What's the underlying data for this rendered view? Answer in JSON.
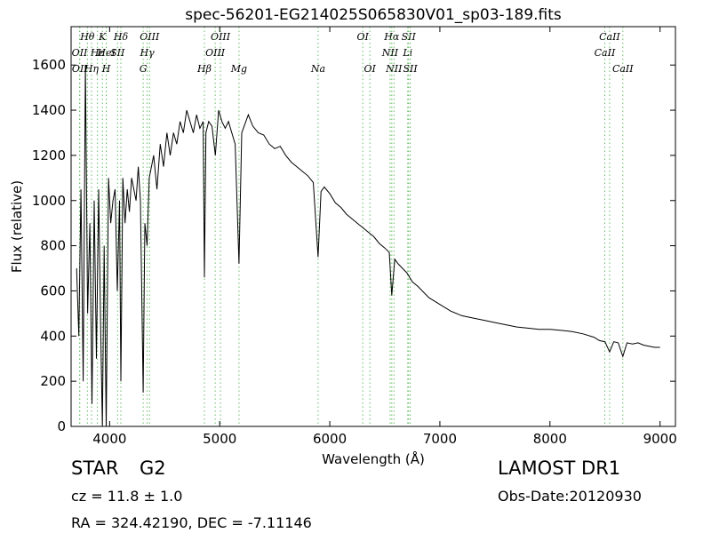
{
  "chart_data": {
    "type": "line",
    "title": "spec-56201-EG214025S065830V01_sp03-189.fits",
    "x_label": "Wavelength (Å)",
    "y_label": "Flux (relative)",
    "xlim": [
      3650,
      9140
    ],
    "ylim": [
      0,
      1770
    ],
    "xticks": [
      4000,
      5000,
      6000,
      7000,
      8000,
      9000
    ],
    "yticks": [
      0,
      200,
      400,
      600,
      800,
      1000,
      1200,
      1400,
      1600
    ],
    "color": "#000000",
    "line_color": "#66bb66",
    "x": [
      3700,
      3720,
      3740,
      3760,
      3780,
      3800,
      3820,
      3840,
      3860,
      3880,
      3900,
      3920,
      3934,
      3950,
      3969,
      3990,
      4010,
      4030,
      4050,
      4070,
      4090,
      4102,
      4120,
      4140,
      4160,
      4180,
      4200,
      4220,
      4240,
      4260,
      4280,
      4305,
      4320,
      4340,
      4360,
      4380,
      4400,
      4430,
      4460,
      4490,
      4520,
      4550,
      4580,
      4610,
      4640,
      4670,
      4700,
      4730,
      4760,
      4790,
      4820,
      4850,
      4861,
      4875,
      4900,
      4930,
      4960,
      4990,
      5020,
      5050,
      5080,
      5110,
      5140,
      5175,
      5200,
      5230,
      5260,
      5300,
      5350,
      5400,
      5450,
      5500,
      5550,
      5600,
      5650,
      5700,
      5750,
      5800,
      5850,
      5894,
      5920,
      5950,
      6000,
      6050,
      6100,
      6150,
      6200,
      6250,
      6300,
      6350,
      6400,
      6450,
      6500,
      6540,
      6563,
      6590,
      6620,
      6660,
      6700,
      6750,
      6800,
      6900,
      7000,
      7100,
      7200,
      7300,
      7400,
      7500,
      7600,
      7700,
      7800,
      7900,
      8000,
      8100,
      8200,
      8300,
      8400,
      8450,
      8500,
      8542,
      8580,
      8620,
      8662,
      8700,
      8750,
      8800,
      8850,
      8900,
      8950,
      9000
    ],
    "values": [
      700,
      400,
      1050,
      200,
      1600,
      500,
      900,
      100,
      1000,
      300,
      1050,
      400,
      0,
      800,
      0,
      1100,
      900,
      1000,
      1050,
      600,
      1000,
      200,
      1100,
      900,
      1050,
      950,
      1100,
      1050,
      1000,
      1150,
      1000,
      150,
      900,
      800,
      1100,
      1150,
      1200,
      1050,
      1250,
      1150,
      1300,
      1200,
      1300,
      1250,
      1350,
      1300,
      1400,
      1350,
      1300,
      1380,
      1320,
      1350,
      660,
      1300,
      1350,
      1330,
      1200,
      1400,
      1350,
      1320,
      1350,
      1300,
      1250,
      720,
      1300,
      1340,
      1380,
      1330,
      1300,
      1290,
      1250,
      1230,
      1240,
      1200,
      1170,
      1150,
      1130,
      1110,
      1080,
      750,
      1040,
      1060,
      1030,
      990,
      970,
      940,
      920,
      900,
      880,
      860,
      840,
      810,
      790,
      770,
      580,
      740,
      720,
      700,
      680,
      640,
      620,
      570,
      540,
      510,
      490,
      480,
      470,
      460,
      450,
      440,
      435,
      430,
      430,
      425,
      420,
      410,
      395,
      380,
      375,
      330,
      375,
      370,
      310,
      370,
      365,
      370,
      360,
      355,
      350,
      350
    ],
    "lines": [
      {
        "x": 3798,
        "label": "Hθ"
      },
      {
        "x": 3934,
        "label": "K"
      },
      {
        "x": 4102,
        "label": "Hδ"
      },
      {
        "x": 4363,
        "label": "OIII"
      },
      {
        "x": 5007,
        "label": "OIII"
      },
      {
        "x": 6300,
        "label": "OI"
      },
      {
        "x": 6563,
        "label": "Hα"
      },
      {
        "x": 6716,
        "label": "SII"
      },
      {
        "x": 8542,
        "label": "CaII"
      },
      {
        "x": 3727,
        "label": "OII"
      },
      {
        "x": 3889,
        "label": "Hε"
      },
      {
        "x": 3970,
        "label": "HeI"
      },
      {
        "x": 4072,
        "label": "SII"
      },
      {
        "x": 4341,
        "label": "Hγ"
      },
      {
        "x": 4959,
        "label": "OIII"
      },
      {
        "x": 6548,
        "label": "NII"
      },
      {
        "x": 6708,
        "label": "Li"
      },
      {
        "x": 8498,
        "label": "CaII"
      },
      {
        "x": 3729,
        "label": "OII"
      },
      {
        "x": 3835,
        "label": "Hη"
      },
      {
        "x": 3969,
        "label": "H"
      },
      {
        "x": 4305,
        "label": "G"
      },
      {
        "x": 4861,
        "label": "Hβ"
      },
      {
        "x": 5175,
        "label": "Mg"
      },
      {
        "x": 5894,
        "label": "Na"
      },
      {
        "x": 6364,
        "label": "OI"
      },
      {
        "x": 6583,
        "label": "NII"
      },
      {
        "x": 6731,
        "label": "SII"
      },
      {
        "x": 8662,
        "label": "CaII"
      }
    ]
  },
  "info": {
    "class": "STAR",
    "subclass": "G2",
    "survey": "LAMOST DR1",
    "cz": "cz = 11.8 ± 1.0",
    "date": "Obs-Date:20120930",
    "coords": "RA = 324.42190, DEC = -7.11146"
  }
}
